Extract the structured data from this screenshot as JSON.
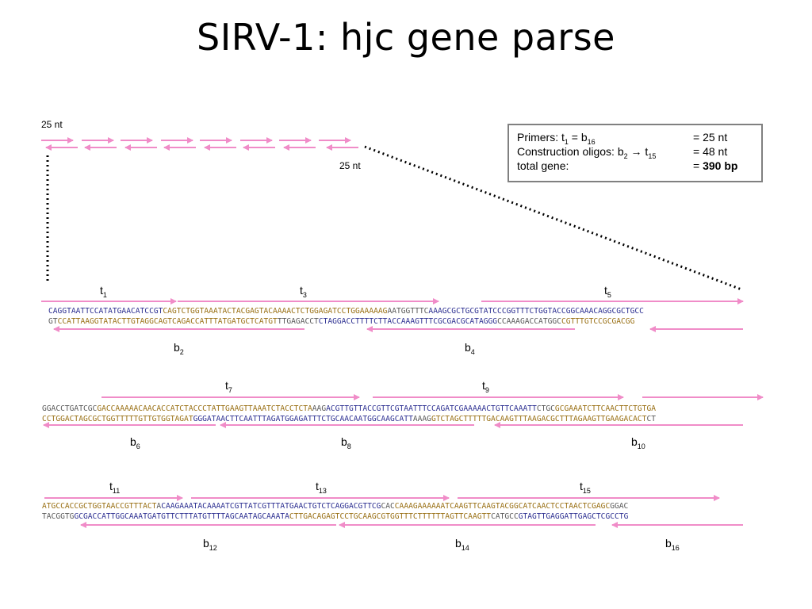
{
  "title": "SIRV-1: hjc gene parse",
  "scale": {
    "top_label": "25 nt",
    "bottom_label": "25 nt"
  },
  "info_box": {
    "primers_prefix": "Primers:  t",
    "primers_sub1": "1",
    "primers_mid": " = b",
    "primers_sub2": "16",
    "primers_value": "=  25 nt",
    "construction_prefix": "Construction oligos: b",
    "construction_sub1": "2",
    "construction_arrow": " → t",
    "construction_sub2": "15",
    "construction_value": "=  48 nt",
    "total_label": "total gene:",
    "total_eq": "= ",
    "total_value": "390 bp"
  },
  "labels": {
    "t1": [
      "t",
      "1"
    ],
    "t3": [
      "t",
      "3"
    ],
    "t5": [
      "t",
      "5"
    ],
    "b2": [
      "b",
      "2"
    ],
    "b4": [
      "b",
      "4"
    ],
    "t7": [
      "t",
      "7"
    ],
    "t9": [
      "t",
      "9"
    ],
    "b6": [
      "b",
      "6"
    ],
    "b8": [
      "b",
      "8"
    ],
    "b10": [
      "b",
      "10"
    ],
    "t11": [
      "t",
      "11"
    ],
    "t13": [
      "t",
      "13"
    ],
    "t15": [
      "t",
      "15"
    ],
    "b12": [
      "b",
      "12"
    ],
    "b14": [
      "b",
      "14"
    ],
    "b16": [
      "b",
      "16"
    ]
  },
  "sequences": {
    "block1_top": [
      {
        "text": "CAGGTAATTCCATATGAACATCCGT",
        "color": "blue"
      },
      {
        "text": "CAGTCTGGTAAATACTACGAGTACAAAACTCTGGAGATCCTGGAAAAAG",
        "color": "gold"
      },
      {
        "text": "AATGGTTTC",
        "color": "grey"
      },
      {
        "text": "AAAGCGCTGCGTATCCCGGTTTCTGGTACCGGCAAACAGGCGCTGCC",
        "color": "blue"
      }
    ],
    "block1_bottom": [
      {
        "text": "GT",
        "color": "grey"
      },
      {
        "text": "CCATTAAGGTATACTTGTAGGCAGTCAGACCATTTATGATGCTCATGT",
        "color": "gold"
      },
      {
        "text": "TTGAGACCT",
        "color": "grey"
      },
      {
        "text": "CTAGGACCTTTTCTTACCAAAGTTTCGCGACGCATAGGG",
        "color": "blue"
      },
      {
        "text": "CCAAAGACCATGGC",
        "color": "grey"
      },
      {
        "text": "CGTTTGTCCGCGACGG",
        "color": "gold"
      }
    ],
    "block2_top": [
      {
        "text": "GGACCTGATCGC",
        "color": "grey"
      },
      {
        "text": "GACCAAAAACAACACCATCTACCCTATTGAAGTTAAATCTACCTCTA",
        "color": "gold"
      },
      {
        "text": "AAG",
        "color": "grey"
      },
      {
        "text": "ACGTTGTTACCGTTCGTAATTTCCAGATCGAAAAACTGTTCAAATT",
        "color": "blue"
      },
      {
        "text": "CTGC",
        "color": "grey"
      },
      {
        "text": "GCGAAATCTTCAACTTCTGTGA",
        "color": "gold"
      }
    ],
    "block2_bottom": [
      {
        "text": "CCTGGACTAGCGCTGGTTTTTGTTGTGGTAGAT",
        "color": "gold"
      },
      {
        "text": "GGGATAACTTCAATTTAGATGGAGATTTCTGCAACAATGGCAAGCATT",
        "color": "blue"
      },
      {
        "text": "AAAG",
        "color": "grey"
      },
      {
        "text": "GTCTAGCTTTTTGACAAGTTTAAGACGCTTTAGAAGTTGAAGACACT",
        "color": "gold"
      },
      {
        "text": "CT",
        "color": "grey"
      }
    ],
    "block3_top": [
      {
        "text": "ATGCCACCGCTGGTAACCGTTTACT",
        "color": "gold"
      },
      {
        "text": "A",
        "color": "grey"
      },
      {
        "text": "CAAGAAATACAAAATCGTTATCGTTTATGAACTGTCTCAGGACGTTCG",
        "color": "blue"
      },
      {
        "text": "CAC",
        "color": "grey"
      },
      {
        "text": "CAAAGAAAAAATCAAGTTCAAGTACGGCATCAACTCCTAACTCGAGC",
        "color": "gold"
      },
      {
        "text": "GGAC",
        "color": "grey"
      }
    ],
    "block3_bottom": [
      {
        "text": "TACGGTG",
        "color": "grey"
      },
      {
        "text": "GCGACCATTGGCAAATGATGTTCTTTATGTTTTAGCAATAGCAAATA",
        "color": "blue"
      },
      {
        "text": "CTTGACAGAGTCCTGCAAGCGTGGTTTCTTTTTTAGTTCAAGTT",
        "color": "gold"
      },
      {
        "text": "CATGCC",
        "color": "grey"
      },
      {
        "text": "GTAGTTGAGGATTGAGCTCGCCTG",
        "color": "blue"
      }
    ]
  },
  "colors": {
    "arrow": "#f08cc8",
    "blue": "#2e3192",
    "gold": "#9a7116",
    "grey": "#5a5a5a",
    "box_border": "#808080"
  }
}
